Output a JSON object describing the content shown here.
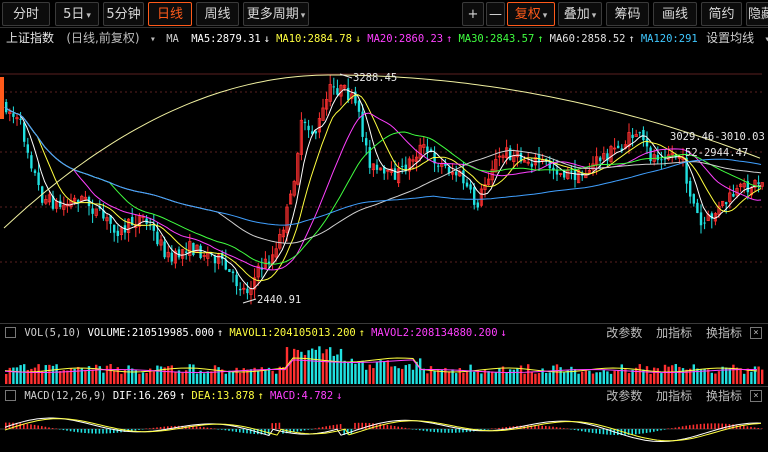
{
  "toolbar": {
    "left": [
      {
        "label": "分时",
        "active": false,
        "caret": false
      },
      {
        "label": "5日",
        "active": false,
        "caret": true
      },
      {
        "label": "5分钟",
        "active": false,
        "caret": false
      },
      {
        "label": "日线",
        "active": true,
        "caret": false
      },
      {
        "label": "周线",
        "active": false,
        "caret": false
      },
      {
        "label": "更多周期",
        "active": false,
        "caret": true
      }
    ],
    "right": [
      {
        "label": "+",
        "active": false,
        "caret": false
      },
      {
        "label": "—",
        "active": false,
        "caret": false
      },
      {
        "label": "复权",
        "active": true,
        "caret": true
      },
      {
        "label": "叠加",
        "active": false,
        "caret": true
      },
      {
        "label": "筹码",
        "active": false,
        "caret": false
      },
      {
        "label": "画线",
        "active": false,
        "caret": false
      },
      {
        "label": "简约",
        "active": false,
        "caret": false
      },
      {
        "label": "隐藏",
        "active": false,
        "caret": false
      }
    ]
  },
  "info": {
    "stock_name": "上证指数",
    "period_label": "(日线,前复权)",
    "indicator": "MA",
    "settings_label": "设置均线",
    "ma": [
      {
        "label": "MA5:2879.31",
        "arrow": "↓",
        "color": "#ffffff"
      },
      {
        "label": "MA10:2884.78",
        "arrow": "↓",
        "color": "#ffff40"
      },
      {
        "label": "MA20:2860.23",
        "arrow": "↑",
        "color": "#ff40ff"
      },
      {
        "label": "MA30:2843.57",
        "arrow": "↑",
        "color": "#40ff40"
      },
      {
        "label": "MA60:2858.52",
        "arrow": "↑",
        "color": "#e0e0e0"
      },
      {
        "label": "MA120:291",
        "arrow": "",
        "color": "#40c8ff"
      }
    ]
  },
  "annotations": {
    "high": "3288.45",
    "low": "2440.91",
    "right_1": "3029.46-3010.03",
    "right_2": "52-2944.47"
  },
  "volume": {
    "label": "VOL(5,10)",
    "values": [
      {
        "label": "VOLUME:210519985.000",
        "arrow": "↑",
        "color": "#ffffff"
      },
      {
        "label": "MAVOL1:204105013.200",
        "arrow": "↑",
        "color": "#ffff40"
      },
      {
        "label": "MAVOL2:208134880.200",
        "arrow": "↓",
        "color": "#ff40ff"
      }
    ]
  },
  "macd": {
    "label": "MACD(12,26,9)",
    "values": [
      {
        "label": "DIF:16.269",
        "arrow": "↑",
        "color": "#ffffff"
      },
      {
        "label": "DEA:13.878",
        "arrow": "↑",
        "color": "#ffff40"
      },
      {
        "label": "MACD:4.782",
        "arrow": "↓",
        "color": "#ff40ff"
      }
    ]
  },
  "panel_links": {
    "params": "改参数",
    "add": "加指标",
    "switch": "换指标"
  },
  "colors": {
    "up": "#ff3030",
    "down": "#20e0e0",
    "accent": "#ff5a1a"
  }
}
